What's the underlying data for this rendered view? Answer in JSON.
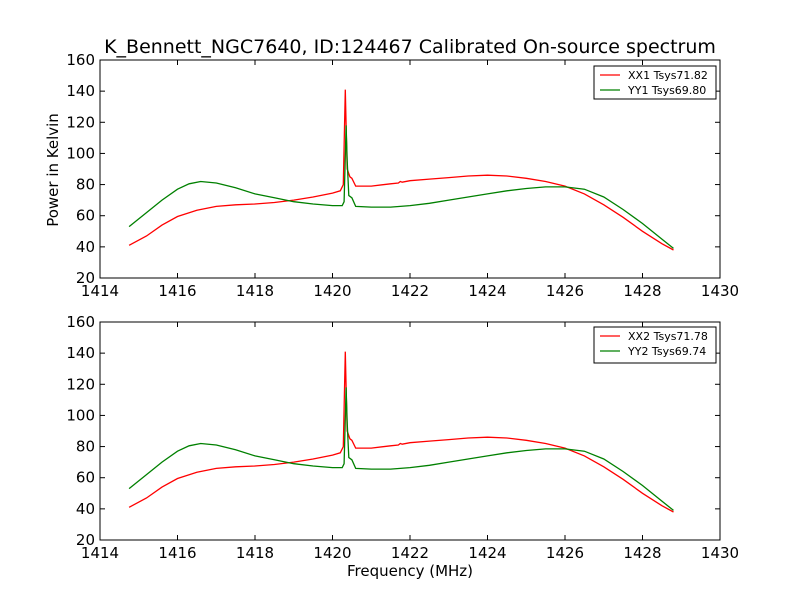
{
  "chart_data": {
    "type": "line",
    "title": "K_Bennett_NGC7640, ID:124467 Calibrated On-source spectrum",
    "xlabel": "Frequency (MHz)",
    "ylabel": "Power in Kelvin",
    "xlim": [
      1414,
      1430
    ],
    "ylim": [
      20,
      160
    ],
    "xticks": [
      "1414",
      "1416",
      "1418",
      "1420",
      "1422",
      "1424",
      "1426",
      "1428",
      "1430"
    ],
    "yticks": [
      "20",
      "40",
      "60",
      "80",
      "100",
      "120",
      "140",
      "160"
    ],
    "grid": false,
    "legend_position": "upper-right",
    "colors": {
      "red": "#ff0000",
      "green": "#008000"
    },
    "panels": [
      {
        "series": [
          {
            "name": "XX1 Tsys71.82",
            "color": "#ff0000",
            "x": [
              1414.75,
              1415.2,
              1415.6,
              1416.0,
              1416.5,
              1417.0,
              1417.5,
              1418.0,
              1418.5,
              1419.0,
              1419.5,
              1420.0,
              1420.2,
              1420.28,
              1420.33,
              1420.36,
              1420.38,
              1420.45,
              1420.5,
              1420.6,
              1421.0,
              1421.5,
              1421.7,
              1421.75,
              1421.8,
              1422.0,
              1422.5,
              1423.0,
              1423.5,
              1424.0,
              1424.5,
              1425.0,
              1425.5,
              1426.0,
              1426.5,
              1427.0,
              1427.5,
              1428.0,
              1428.5,
              1428.8
            ],
            "y": [
              41,
              47,
              54,
              59.5,
              63.5,
              66,
              67,
              67.5,
              68.5,
              70,
              72,
              74.5,
              76,
              80,
              141,
              110,
              90,
              85,
              84,
              79,
              79,
              80.5,
              81,
              82,
              81.5,
              82.5,
              83.5,
              84.5,
              85.5,
              86,
              85.5,
              84,
              82,
              79,
              74,
              67,
              59,
              50,
              42,
              38
            ]
          },
          {
            "name": "YY1 Tsys69.80",
            "color": "#008000",
            "x": [
              1414.75,
              1415.2,
              1415.6,
              1416.0,
              1416.3,
              1416.6,
              1417.0,
              1417.5,
              1418.0,
              1418.5,
              1419.0,
              1419.5,
              1420.0,
              1420.25,
              1420.3,
              1420.35,
              1420.38,
              1420.42,
              1420.5,
              1420.6,
              1421.0,
              1421.5,
              1421.75,
              1422.0,
              1422.5,
              1423.0,
              1423.5,
              1424.0,
              1424.5,
              1425.0,
              1425.5,
              1426.0,
              1426.5,
              1427.0,
              1427.5,
              1428.0,
              1428.5,
              1428.8
            ],
            "y": [
              53,
              62,
              70,
              77,
              80.5,
              82,
              81,
              78,
              74,
              71.5,
              69,
              67.5,
              66.5,
              66.5,
              69,
              118,
              95,
              73,
              71.5,
              66,
              65.5,
              65.5,
              66,
              66.5,
              68,
              70,
              72,
              74,
              76,
              77.5,
              78.5,
              78.5,
              77,
              72,
              64,
              55,
              45,
              39
            ]
          }
        ]
      },
      {
        "series": [
          {
            "name": "XX2 Tsys71.78",
            "color": "#ff0000",
            "x": [
              1414.75,
              1415.2,
              1415.6,
              1416.0,
              1416.5,
              1417.0,
              1417.5,
              1418.0,
              1418.5,
              1419.0,
              1419.5,
              1420.0,
              1420.2,
              1420.28,
              1420.33,
              1420.36,
              1420.38,
              1420.45,
              1420.5,
              1420.6,
              1421.0,
              1421.5,
              1421.7,
              1421.75,
              1421.8,
              1422.0,
              1422.5,
              1423.0,
              1423.5,
              1424.0,
              1424.5,
              1425.0,
              1425.5,
              1426.0,
              1426.5,
              1427.0,
              1427.5,
              1428.0,
              1428.5,
              1428.8
            ],
            "y": [
              41,
              47,
              54,
              59.5,
              63.5,
              66,
              67,
              67.5,
              68.5,
              70,
              72,
              74.5,
              76,
              80,
              141,
              110,
              90,
              85,
              84,
              79,
              79,
              80.5,
              81,
              82,
              81.5,
              82.5,
              83.5,
              84.5,
              85.5,
              86,
              85.5,
              84,
              82,
              79,
              74,
              67,
              59,
              50,
              42,
              38
            ]
          },
          {
            "name": "YY2 Tsys69.74",
            "color": "#008000",
            "x": [
              1414.75,
              1415.2,
              1415.6,
              1416.0,
              1416.3,
              1416.6,
              1417.0,
              1417.5,
              1418.0,
              1418.5,
              1419.0,
              1419.5,
              1420.0,
              1420.25,
              1420.3,
              1420.35,
              1420.38,
              1420.42,
              1420.5,
              1420.6,
              1421.0,
              1421.5,
              1421.75,
              1422.0,
              1422.5,
              1423.0,
              1423.5,
              1424.0,
              1424.5,
              1425.0,
              1425.5,
              1426.0,
              1426.5,
              1427.0,
              1427.5,
              1428.0,
              1428.5,
              1428.8
            ],
            "y": [
              53,
              62,
              70,
              77,
              80.5,
              82,
              81,
              78,
              74,
              71.5,
              69,
              67.5,
              66.5,
              66.5,
              69,
              118,
              95,
              73,
              71.5,
              66,
              65.5,
              65.5,
              66,
              66.5,
              68,
              70,
              72,
              74,
              76,
              77.5,
              78.5,
              78.5,
              77,
              72,
              64,
              55,
              45,
              39
            ]
          }
        ]
      }
    ]
  }
}
